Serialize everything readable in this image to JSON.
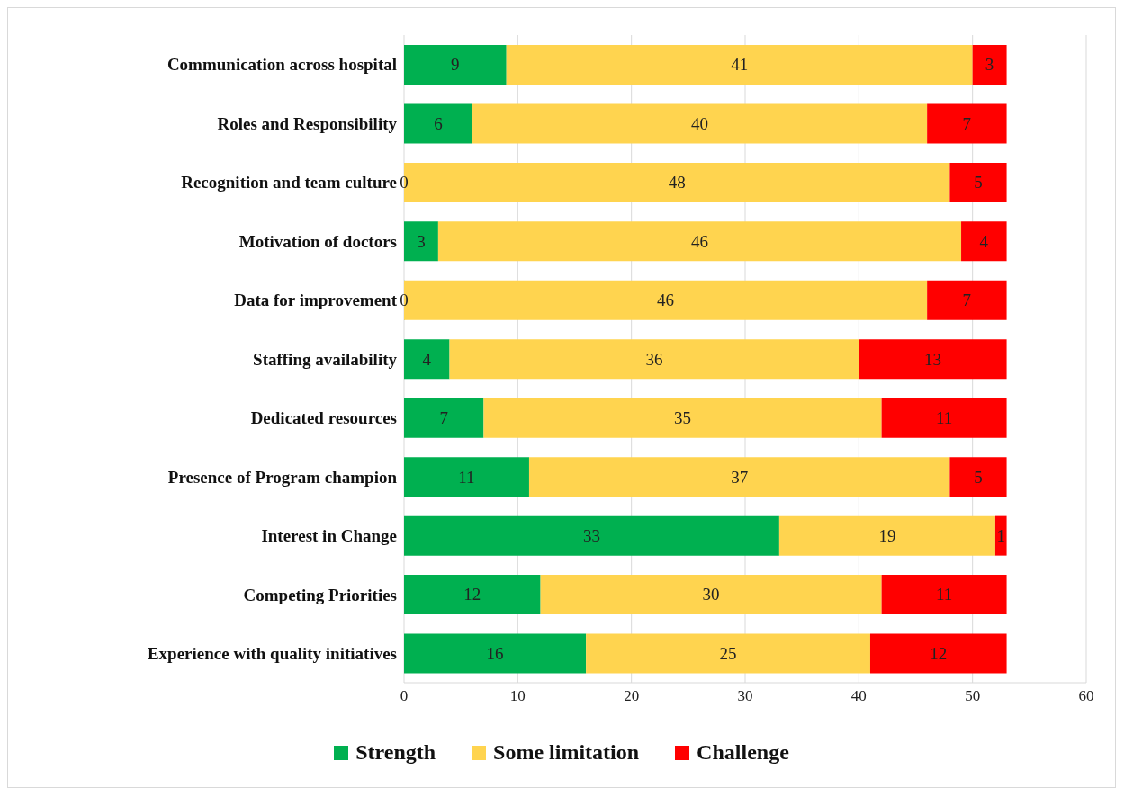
{
  "chart_data": {
    "type": "bar",
    "orientation": "horizontal",
    "stacked": true,
    "categories": [
      "Communication across hospital",
      "Roles and Responsibility",
      "Recognition and team culture",
      "Motivation of doctors",
      "Data for improvement",
      "Staffing availability",
      "Dedicated resources",
      "Presence of Program champion",
      "Interest in Change",
      "Competing Priorities",
      "Experience with quality initiatives"
    ],
    "series": [
      {
        "name": "Strength",
        "color": "#00b050",
        "values": [
          9,
          6,
          0,
          3,
          0,
          4,
          7,
          11,
          33,
          12,
          16
        ]
      },
      {
        "name": "Some limitation",
        "color": "#ffd44f",
        "values": [
          41,
          40,
          48,
          46,
          46,
          36,
          35,
          37,
          19,
          30,
          25
        ]
      },
      {
        "name": "Challenge",
        "color": "#ff0000",
        "values": [
          3,
          7,
          5,
          4,
          7,
          13,
          11,
          5,
          1,
          11,
          12
        ]
      }
    ],
    "xlim": [
      0,
      60
    ],
    "xticks": [
      0,
      10,
      20,
      30,
      40,
      50,
      60
    ],
    "grid": "x",
    "legend": "bottom",
    "data_labels": true
  }
}
